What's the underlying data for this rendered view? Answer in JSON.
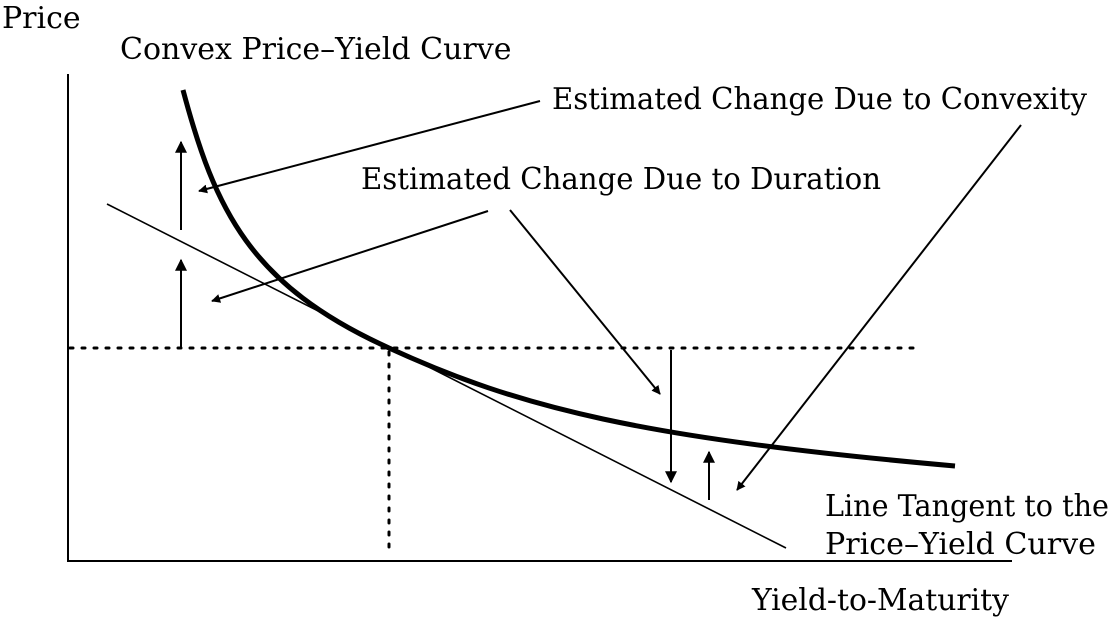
{
  "labels": {
    "y_axis": "Price",
    "x_axis": "Yield-to-Maturity",
    "curve": "Convex Price–Yield Curve",
    "convexity": "Estimated Change Due to Convexity",
    "duration": "Estimated Change Due to Duration",
    "tangent_line1": "Line Tangent to the",
    "tangent_line2": "Price–Yield Curve"
  },
  "colors": {
    "ink": "#000000",
    "background": "#ffffff"
  }
}
